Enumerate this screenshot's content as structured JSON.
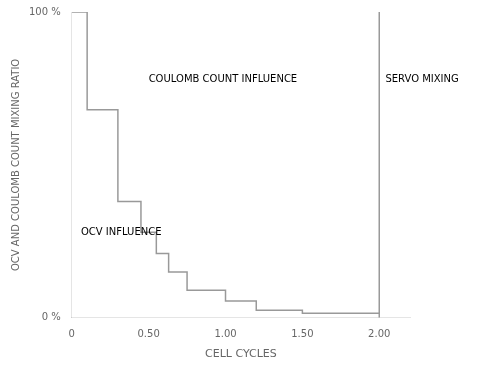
{
  "chart_data": {
    "type": "line",
    "xlabel": "CELL CYCLES",
    "ylabel": "OCV AND COULOMB COUNT MIXING RATIO",
    "x": [
      0.0,
      0.1,
      0.1,
      0.3,
      0.3,
      0.45,
      0.45,
      0.55,
      0.55,
      0.63,
      0.63,
      0.75,
      0.75,
      1.0,
      1.0,
      1.2,
      1.2,
      1.5,
      1.5,
      2.0
    ],
    "series": [
      {
        "color": "#999999",
        "values": [
          1.0,
          1.0,
          0.68,
          0.68,
          0.38,
          0.38,
          0.28,
          0.28,
          0.21,
          0.21,
          0.15,
          0.15,
          0.09,
          0.09,
          0.055,
          0.055,
          0.025,
          0.025,
          0.015,
          0.015
        ]
      }
    ],
    "vlines": [
      {
        "x": 2.0,
        "color": "#999999"
      }
    ],
    "xlim": [
      0,
      2.2
    ],
    "ylim": [
      0,
      1.0
    ],
    "xticks": [
      0,
      {
        "value": 0.5,
        "label": "0.50"
      },
      {
        "value": 1.0,
        "label": "1.00"
      },
      {
        "value": 1.5,
        "label": "1.50"
      },
      {
        "value": 2.0,
        "label": "2.00"
      }
    ],
    "yticks": [
      {
        "value": 0,
        "label": "0 %"
      },
      {
        "value": 1,
        "label": "100 %"
      }
    ],
    "annotations": [
      {
        "x": 0.5,
        "y": 0.78,
        "text": "COULOMB COUNT INFLUENCE"
      },
      {
        "x": 0.06,
        "y": 0.28,
        "text": "OCV INFLUENCE"
      },
      {
        "x": 2.04,
        "y": 0.78,
        "text": "SERVO MIXING"
      }
    ],
    "grid": false
  }
}
